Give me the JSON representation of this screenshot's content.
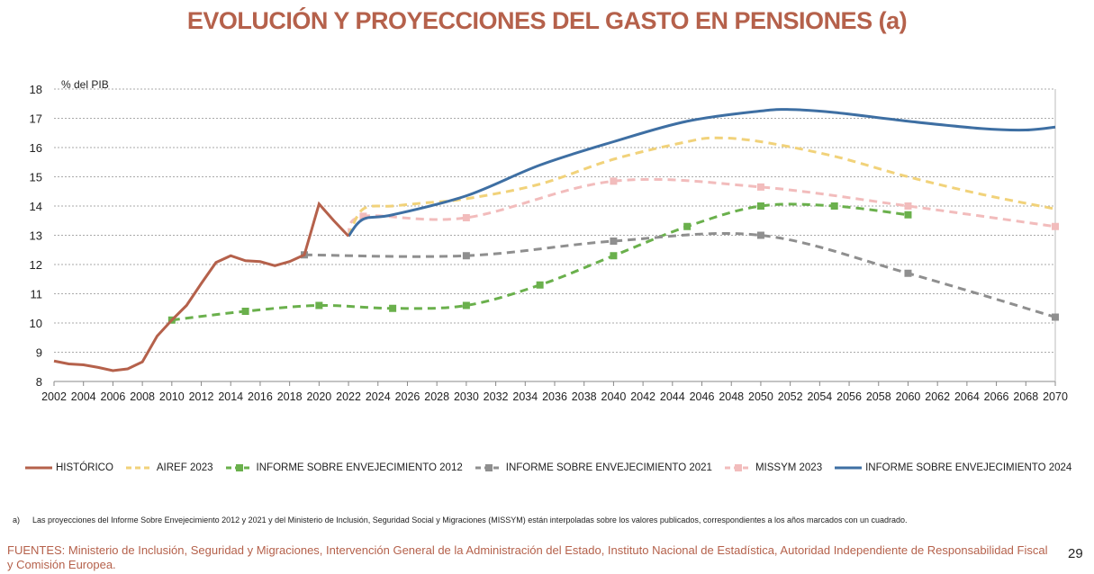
{
  "title": "EVOLUCIÓN Y PROYECCIONES DEL GASTO EN PENSIONES (a)",
  "chart_data": {
    "type": "line",
    "title": "EVOLUCIÓN Y PROYECCIONES DEL GASTO EN PENSIONES (a)",
    "ylabel": "% del PIB",
    "xlim": [
      2002,
      2070
    ],
    "ylim": [
      8,
      18
    ],
    "xticks": [
      2002,
      2004,
      2006,
      2008,
      2010,
      2012,
      2014,
      2016,
      2018,
      2020,
      2022,
      2024,
      2026,
      2028,
      2030,
      2032,
      2034,
      2036,
      2038,
      2040,
      2042,
      2044,
      2046,
      2048,
      2050,
      2052,
      2054,
      2056,
      2058,
      2060,
      2062,
      2064,
      2066,
      2068,
      2070
    ],
    "yticks": [
      8,
      9,
      10,
      11,
      12,
      13,
      14,
      15,
      16,
      17,
      18
    ],
    "grid": "horizontal dotted",
    "legend": "bottom",
    "series": [
      {
        "name": "HISTÓRICO",
        "color": "#b5614b",
        "dash": false,
        "smooth": false,
        "markers": false,
        "x": [
          2002,
          2003,
          2004,
          2005,
          2006,
          2007,
          2008,
          2009,
          2010,
          2011,
          2012,
          2013,
          2014,
          2015,
          2016,
          2017,
          2018,
          2019,
          2020,
          2021,
          2022
        ],
        "y": [
          8.7,
          8.6,
          8.57,
          8.48,
          8.37,
          8.43,
          8.67,
          9.55,
          10.1,
          10.6,
          11.35,
          12.07,
          12.3,
          12.13,
          12.1,
          11.96,
          12.1,
          12.33,
          14.07,
          13.5,
          12.97
        ]
      },
      {
        "name": "AIREF 2023",
        "color": "#f1d27a",
        "dash": true,
        "smooth": true,
        "markers": false,
        "x": [
          2022,
          2023,
          2025,
          2027,
          2030,
          2035,
          2040,
          2045,
          2047,
          2050,
          2055,
          2060,
          2065,
          2070
        ],
        "y": [
          12.97,
          13.9,
          14.0,
          14.1,
          14.25,
          14.75,
          15.6,
          16.2,
          16.33,
          16.2,
          15.7,
          15.0,
          14.4,
          13.9
        ]
      },
      {
        "name": "INFORME SOBRE ENVEJECIMIENTO 2012",
        "color": "#6ab04c",
        "dash": true,
        "smooth": true,
        "markers": true,
        "x": [
          2010,
          2015,
          2020,
          2025,
          2030,
          2035,
          2040,
          2045,
          2050,
          2055,
          2060
        ],
        "y": [
          10.1,
          10.4,
          10.6,
          10.5,
          10.6,
          11.3,
          12.3,
          13.3,
          14.0,
          14.0,
          13.7
        ]
      },
      {
        "name": "INFORME SOBRE ENVEJECIMIENTO 2021",
        "color": "#8f8f8f",
        "dash": true,
        "smooth": true,
        "markers": true,
        "x": [
          2019,
          2030,
          2040,
          2050,
          2060,
          2070
        ],
        "y": [
          12.33,
          12.3,
          12.8,
          13.0,
          11.7,
          10.2
        ]
      },
      {
        "name": "MISSYM 2023",
        "color": "#f2bcbc",
        "dash": true,
        "smooth": true,
        "markers": true,
        "x": [
          2022,
          2023,
          2030,
          2040,
          2050,
          2060,
          2070
        ],
        "y": [
          12.97,
          13.65,
          13.6,
          14.85,
          14.65,
          14.0,
          13.3
        ]
      },
      {
        "name": "INFORME SOBRE ENVEJECIMIENTO 2024",
        "color": "#3e6fa3",
        "dash": false,
        "smooth": true,
        "markers": false,
        "x": [
          2022,
          2023,
          2025,
          2030,
          2035,
          2040,
          2045,
          2050,
          2052,
          2055,
          2060,
          2065,
          2068,
          2070
        ],
        "y": [
          12.97,
          13.55,
          13.7,
          14.35,
          15.4,
          16.2,
          16.9,
          17.25,
          17.3,
          17.2,
          16.9,
          16.65,
          16.6,
          16.7
        ]
      }
    ]
  },
  "note_marker": "a)",
  "note": "Las proyecciones del Informe Sobre Envejecimiento 2012 y 2021 y del Ministerio de Inclusión, Seguridad Social y Migraciones (MISSYM) están interpoladas sobre los valores publicados, correspondientes a los años marcados con un cuadrado.",
  "sources": "FUENTES: Ministerio de Inclusión, Seguridad y Migraciones, Intervención General de la Administración del Estado, Instituto Nacional de Estadística, Autoridad Independiente de Responsabilidad Fiscal y Comisión Europea.",
  "page_number": "29"
}
